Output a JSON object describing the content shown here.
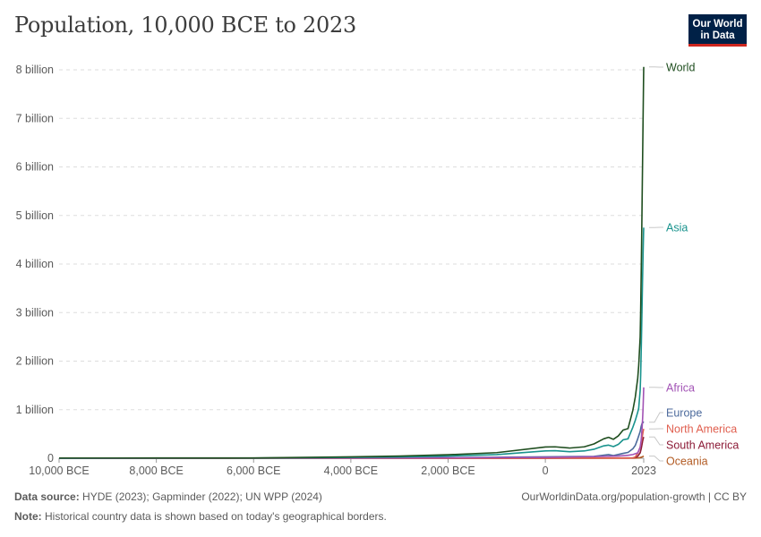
{
  "header": {
    "title": "Population, 10,000 BCE to 2023",
    "logo_line1": "Our World",
    "logo_line2": "in Data"
  },
  "footer": {
    "source_label": "Data source:",
    "source_text": "HYDE (2023); Gapminder (2022); UN WPP (2024)",
    "url_text": "OurWorldinData.org/population-growth | CC BY",
    "note_label": "Note:",
    "note_text": "Historical country data is shown based on today's geographical borders."
  },
  "chart_data": {
    "type": "line",
    "title": "Population, 10,000 BCE to 2023",
    "xlabel": "",
    "ylabel": "",
    "xlim": [
      -10000,
      2023
    ],
    "ylim": [
      0,
      8000000000
    ],
    "grid": true,
    "legend": "inline-right",
    "x_ticks": [
      {
        "value": -10000,
        "label": "10,000 BCE"
      },
      {
        "value": -8000,
        "label": "8,000 BCE"
      },
      {
        "value": -6000,
        "label": "6,000 BCE"
      },
      {
        "value": -4000,
        "label": "4,000 BCE"
      },
      {
        "value": -2000,
        "label": "2,000 BCE"
      },
      {
        "value": 0,
        "label": "0"
      },
      {
        "value": 2023,
        "label": "2023"
      }
    ],
    "y_ticks": [
      {
        "value": 0,
        "label": "0"
      },
      {
        "value": 1000000000,
        "label": "1 billion"
      },
      {
        "value": 2000000000,
        "label": "2 billion"
      },
      {
        "value": 3000000000,
        "label": "3 billion"
      },
      {
        "value": 4000000000,
        "label": "4 billion"
      },
      {
        "value": 5000000000,
        "label": "5 billion"
      },
      {
        "value": 6000000000,
        "label": "6 billion"
      },
      {
        "value": 7000000000,
        "label": "7 billion"
      },
      {
        "value": 8000000000,
        "label": "8 billion"
      }
    ],
    "series": [
      {
        "name": "World",
        "color": "#1f4e1f",
        "points": [
          [
            -10000,
            4500000
          ],
          [
            -8000,
            5000000
          ],
          [
            -6000,
            7000000
          ],
          [
            -4000,
            28000000
          ],
          [
            -3000,
            45000000
          ],
          [
            -2000,
            72000000
          ],
          [
            -1000,
            115000000
          ],
          [
            0,
            232000000
          ],
          [
            200,
            235000000
          ],
          [
            500,
            210000000
          ],
          [
            800,
            235000000
          ],
          [
            1000,
            295000000
          ],
          [
            1200,
            400000000
          ],
          [
            1300,
            430000000
          ],
          [
            1400,
            390000000
          ],
          [
            1500,
            460000000
          ],
          [
            1600,
            580000000
          ],
          [
            1700,
            610000000
          ],
          [
            1800,
            990000000
          ],
          [
            1850,
            1260000000
          ],
          [
            1900,
            1650000000
          ],
          [
            1920,
            1910000000
          ],
          [
            1950,
            2500000000
          ],
          [
            1960,
            3020000000
          ],
          [
            1970,
            3700000000
          ],
          [
            1980,
            4440000000
          ],
          [
            1990,
            5310000000
          ],
          [
            2000,
            6150000000
          ],
          [
            2010,
            6990000000
          ],
          [
            2020,
            7840000000
          ],
          [
            2023,
            8060000000
          ]
        ]
      },
      {
        "name": "Asia",
        "color": "#19938d",
        "points": [
          [
            -10000,
            2000000
          ],
          [
            -8000,
            2500000
          ],
          [
            -6000,
            4000000
          ],
          [
            -4000,
            16000000
          ],
          [
            -3000,
            27000000
          ],
          [
            -2000,
            45000000
          ],
          [
            -1000,
            75000000
          ],
          [
            0,
            150000000
          ],
          [
            200,
            155000000
          ],
          [
            500,
            135000000
          ],
          [
            800,
            150000000
          ],
          [
            1000,
            185000000
          ],
          [
            1200,
            255000000
          ],
          [
            1300,
            270000000
          ],
          [
            1400,
            240000000
          ],
          [
            1500,
            285000000
          ],
          [
            1600,
            380000000
          ],
          [
            1700,
            400000000
          ],
          [
            1800,
            640000000
          ],
          [
            1850,
            780000000
          ],
          [
            1900,
            950000000
          ],
          [
            1920,
            1030000000
          ],
          [
            1950,
            1400000000
          ],
          [
            1960,
            1700000000
          ],
          [
            1970,
            2140000000
          ],
          [
            1980,
            2640000000
          ],
          [
            1990,
            3200000000
          ],
          [
            2000,
            3730000000
          ],
          [
            2010,
            4210000000
          ],
          [
            2020,
            4660000000
          ],
          [
            2023,
            4750000000
          ]
        ]
      },
      {
        "name": "Africa",
        "color": "#a253b5",
        "points": [
          [
            -10000,
            500000
          ],
          [
            -4000,
            4000000
          ],
          [
            -2000,
            10000000
          ],
          [
            0,
            17000000
          ],
          [
            1000,
            32000000
          ],
          [
            1500,
            46000000
          ],
          [
            1700,
            61000000
          ],
          [
            1800,
            76000000
          ],
          [
            1900,
            110000000
          ],
          [
            1950,
            228000000
          ],
          [
            1970,
            365000000
          ],
          [
            1990,
            630000000
          ],
          [
            2000,
            810000000
          ],
          [
            2010,
            1040000000
          ],
          [
            2020,
            1360000000
          ],
          [
            2023,
            1460000000
          ]
        ]
      },
      {
        "name": "Europe",
        "color": "#4c6a9c",
        "points": [
          [
            -10000,
            600000
          ],
          [
            -4000,
            5000000
          ],
          [
            -2000,
            12000000
          ],
          [
            0,
            28000000
          ],
          [
            1000,
            38000000
          ],
          [
            1300,
            75000000
          ],
          [
            1400,
            55000000
          ],
          [
            1500,
            77000000
          ],
          [
            1600,
            100000000
          ],
          [
            1700,
            120000000
          ],
          [
            1800,
            195000000
          ],
          [
            1850,
            265000000
          ],
          [
            1900,
            400000000
          ],
          [
            1950,
            550000000
          ],
          [
            1970,
            655000000
          ],
          [
            1990,
            720000000
          ],
          [
            2000,
            726000000
          ],
          [
            2010,
            736000000
          ],
          [
            2020,
            745000000
          ],
          [
            2023,
            742000000
          ]
        ]
      },
      {
        "name": "North America",
        "color": "#e05f4f",
        "points": [
          [
            -10000,
            200000
          ],
          [
            -4000,
            500000
          ],
          [
            0,
            2000000
          ],
          [
            1000,
            3000000
          ],
          [
            1500,
            3500000
          ],
          [
            1700,
            3000000
          ],
          [
            1800,
            7000000
          ],
          [
            1850,
            26000000
          ],
          [
            1900,
            105000000
          ],
          [
            1950,
            228000000
          ],
          [
            1970,
            320000000
          ],
          [
            1990,
            425000000
          ],
          [
            2000,
            485000000
          ],
          [
            2010,
            545000000
          ],
          [
            2020,
            595000000
          ],
          [
            2023,
            605000000
          ]
        ]
      },
      {
        "name": "South America",
        "color": "#8c1b37",
        "points": [
          [
            -10000,
            100000
          ],
          [
            -4000,
            300000
          ],
          [
            0,
            2000000
          ],
          [
            1000,
            4000000
          ],
          [
            1500,
            6000000
          ],
          [
            1700,
            6000000
          ],
          [
            1800,
            9000000
          ],
          [
            1850,
            16000000
          ],
          [
            1900,
            40000000
          ],
          [
            1950,
            113000000
          ],
          [
            1970,
            190000000
          ],
          [
            1990,
            295000000
          ],
          [
            2000,
            350000000
          ],
          [
            2010,
            395000000
          ],
          [
            2020,
            430000000
          ],
          [
            2023,
            438000000
          ]
        ]
      },
      {
        "name": "Oceania",
        "color": "#b25a22",
        "points": [
          [
            -10000,
            100000
          ],
          [
            0,
            1000000
          ],
          [
            1000,
            1200000
          ],
          [
            1500,
            1500000
          ],
          [
            1800,
            2000000
          ],
          [
            1900,
            6000000
          ],
          [
            1950,
            12800000
          ],
          [
            1970,
            19600000
          ],
          [
            1990,
            27000000
          ],
          [
            2000,
            31000000
          ],
          [
            2010,
            37000000
          ],
          [
            2020,
            43000000
          ],
          [
            2023,
            45000000
          ]
        ]
      }
    ]
  }
}
